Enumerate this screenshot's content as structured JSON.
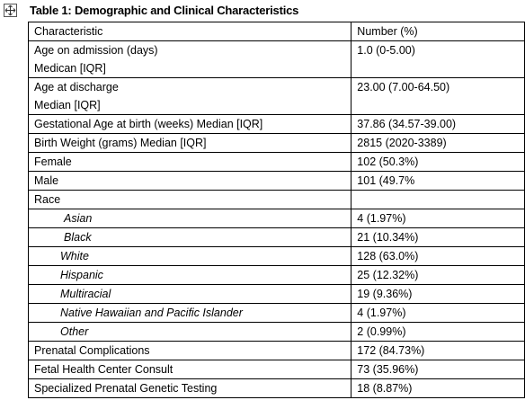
{
  "title": "Table 1: Demographic and Clinical Characteristics",
  "table": {
    "header": [
      "Characteristic",
      "Number (%)"
    ],
    "rows": [
      [
        [
          "Age on admission (days)",
          "Medican [IQR]"
        ],
        "1.0 (0-5.00)"
      ],
      [
        [
          "Age at discharge",
          "Median [IQR]"
        ],
        "23.00 (7.00-64.50)"
      ],
      [
        [
          "Gestational Age at birth (weeks) Median [IQR]"
        ],
        "37.86 (34.57-39.00)"
      ],
      [
        [
          "Birth Weight (grams) Median [IQR]"
        ],
        "2815 (2020-3389)"
      ],
      [
        [
          "Female"
        ],
        "102 (50.3%)"
      ],
      [
        [
          "Male"
        ],
        "101 (49.7%"
      ],
      [
        [
          "Race"
        ],
        ""
      ],
      [
        [
          "Asian"
        ],
        "4 (1.97%)"
      ],
      [
        [
          "Black"
        ],
        "21 (10.34%)"
      ],
      [
        [
          "White"
        ],
        "128 (63.0%)"
      ],
      [
        [
          "Hispanic"
        ],
        "25 (12.32%)"
      ],
      [
        [
          "Multiracial"
        ],
        "19 (9.36%)"
      ],
      [
        [
          "Native Hawaiian and Pacific Islander"
        ],
        "4 (1.97%)"
      ],
      [
        [
          "Other"
        ],
        "2 (0.99%)"
      ],
      [
        [
          "Prenatal Complications"
        ],
        "172 (84.73%)"
      ],
      [
        [
          "Fetal Health Center Consult"
        ],
        "73 (35.96%)"
      ],
      [
        [
          "Specialized Prenatal Genetic Testing"
        ],
        "18 (8.87%)"
      ]
    ]
  }
}
